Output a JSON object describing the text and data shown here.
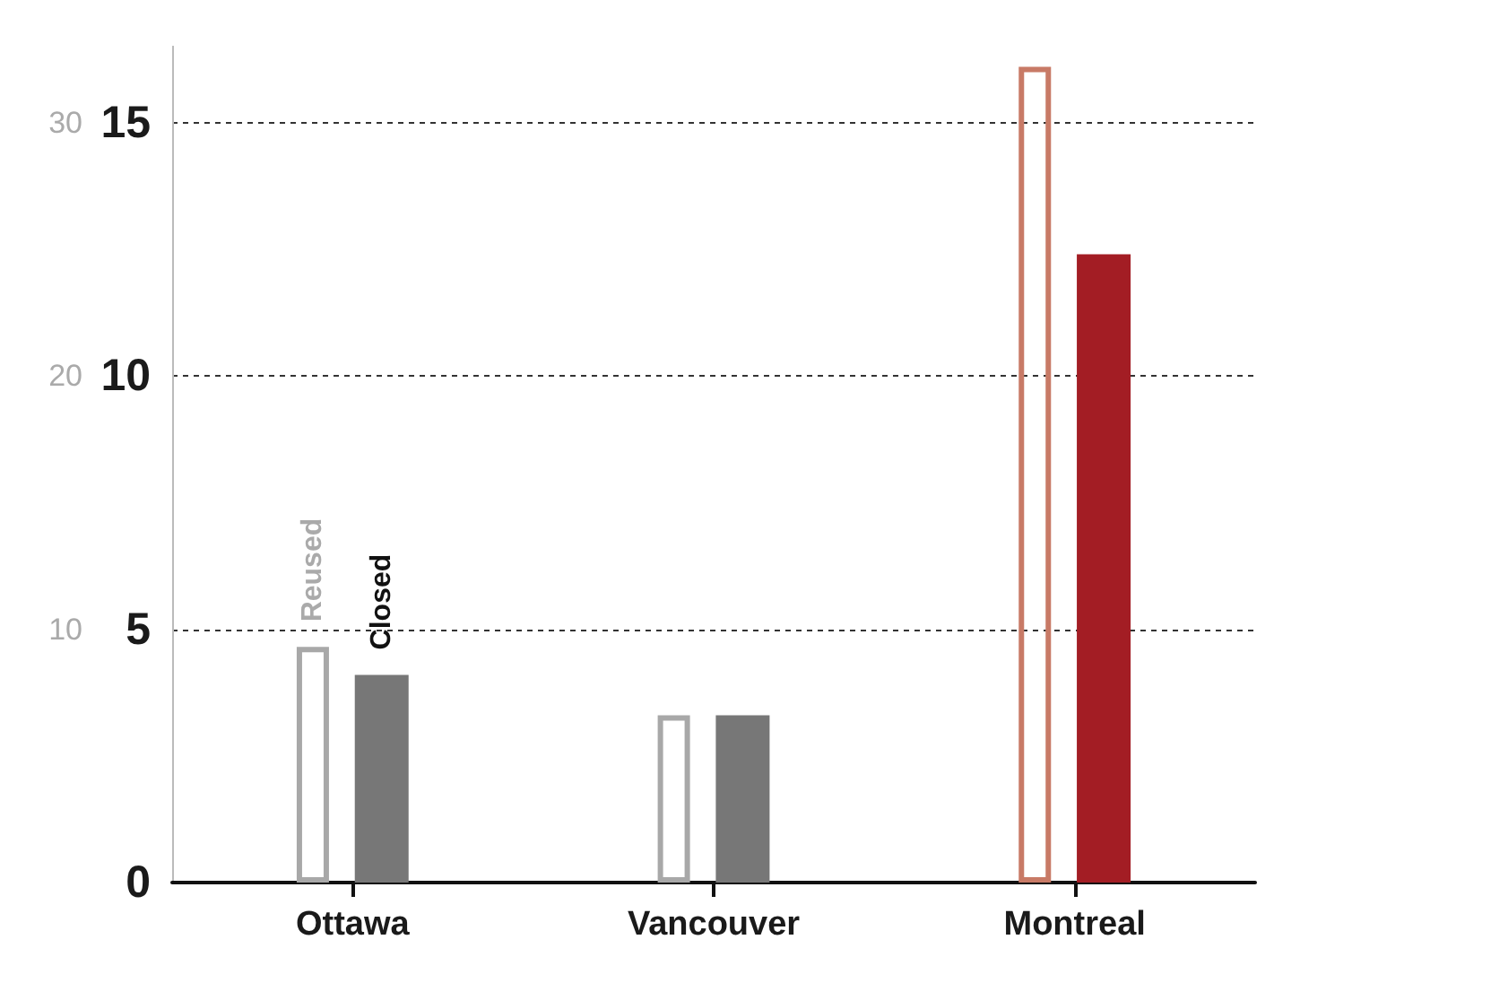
{
  "chart_data": {
    "type": "bar",
    "categories": [
      "Ottawa",
      "Vancouver",
      "Montreal"
    ],
    "series": [
      {
        "name": "Reused",
        "axis": "y2",
        "colors": [
          "#a8a8a8",
          "#a8a8a8",
          "#c87a66"
        ],
        "values": [
          9.3,
          6.6,
          32.2
        ]
      },
      {
        "name": "Closed",
        "colors": [
          "#777777",
          "#777777",
          "#a31d24"
        ],
        "values": [
          4.1,
          3.3,
          12.4
        ]
      }
    ],
    "ylim": [
      0,
      16.5
    ],
    "yticks": [
      0,
      5,
      10,
      15
    ],
    "y2lim": [
      0,
      33
    ],
    "y2ticks": [
      10,
      20,
      30
    ],
    "grid": "y",
    "legend": false
  }
}
